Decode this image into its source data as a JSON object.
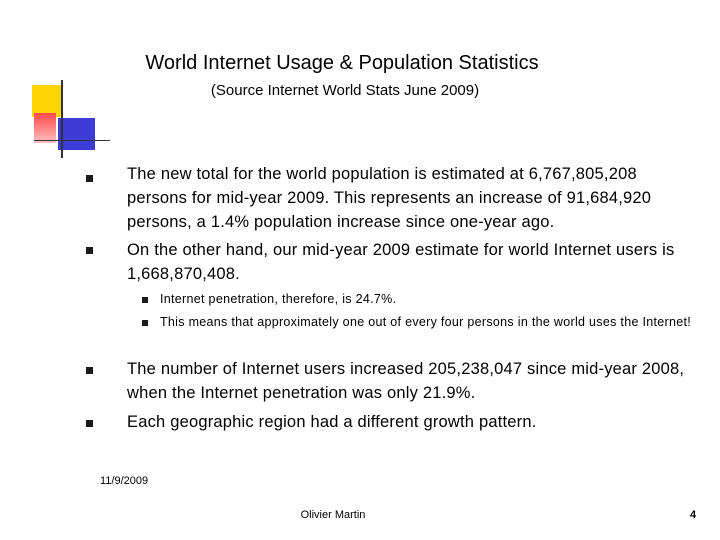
{
  "header": {
    "title": "World Internet Usage & Population Statistics",
    "subtitle": "(Source  Internet World Stats June 2009)"
  },
  "bullets_top": [
    "The new total for the world population is estimated at 6,767,805,208 persons for mid-year 2009. This represents an increase of 91,684,920 persons, a 1.4% population increase since one-year ago.",
    "On the other hand, our mid-year 2009 estimate for world Internet users is 1,668,870,408."
  ],
  "sub_bullets": [
    "Internet penetration, therefore, is 24.7%.",
    "This means that approximately one out of every four persons in the world uses the Internet!"
  ],
  "bullets_bottom": [
    "The number of Internet users increased 205,238,047 since mid-year 2008, when the Internet penetration was only 21.9%.",
    "Each geographic region had a different growth pattern."
  ],
  "footer": {
    "date": "11/9/2009",
    "author": "Olivier Martin",
    "page": "4"
  }
}
